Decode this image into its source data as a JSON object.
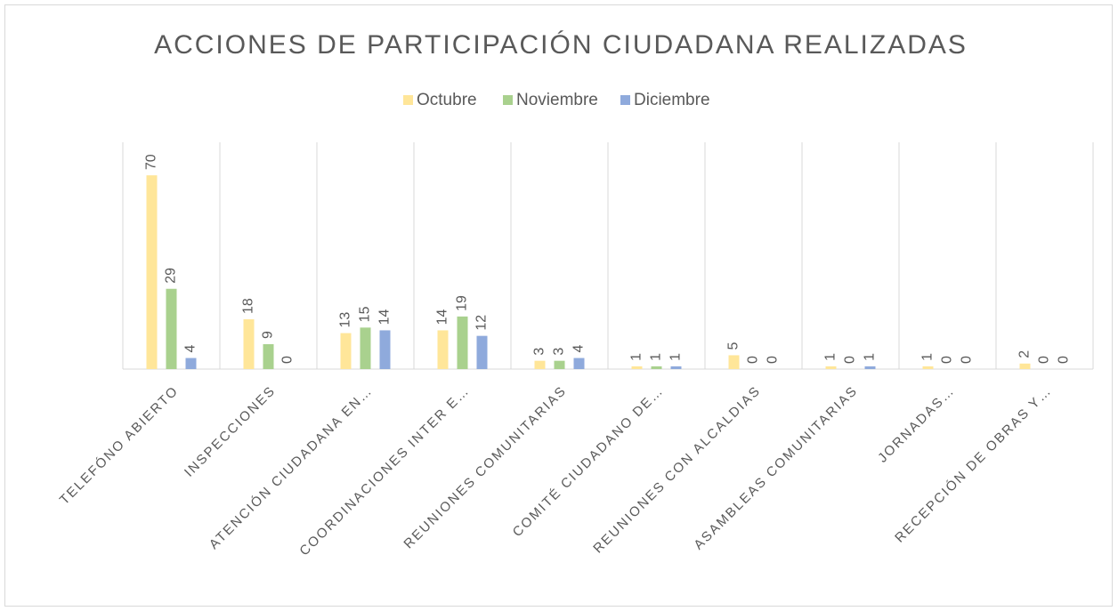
{
  "chart_data": {
    "type": "bar",
    "title": "ACCIONES DE PARTICIPACIÓN CIUDADANA REALIZADAS",
    "categories": [
      "TELEFÓNO ABIERTO",
      "INSPECCIONES",
      "ATENCIÓN CIUDADANA EN…",
      "COORDINACIONES INTER E…",
      "REUNIONES COMUNITARIAS",
      "COMITÉ CIUDADANO DE…",
      "REUNIONES CON ALCALDIAS",
      "ASAMBLEAS COMUNITARIAS",
      "JORNADAS…",
      "RECEPCIÓN DE OBRAS Y…"
    ],
    "series": [
      {
        "name": "Octubre",
        "color": "#ffe699",
        "values": [
          70,
          18,
          13,
          14,
          3,
          1,
          5,
          1,
          1,
          2
        ]
      },
      {
        "name": "Noviembre",
        "color": "#a9d18e",
        "values": [
          29,
          9,
          15,
          19,
          3,
          1,
          0,
          0,
          0,
          0
        ]
      },
      {
        "name": "Diciembre",
        "color": "#8faadc",
        "values": [
          4,
          0,
          14,
          12,
          4,
          1,
          0,
          1,
          0,
          0
        ]
      }
    ],
    "ylim": [
      0,
      80
    ],
    "legend": "top"
  }
}
